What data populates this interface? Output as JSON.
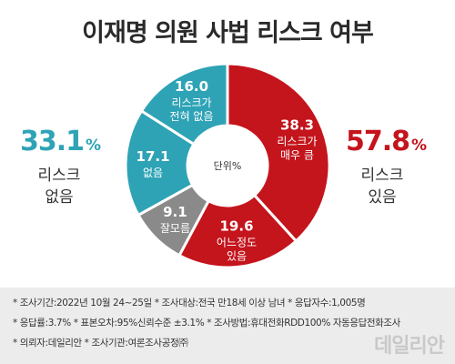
{
  "title": "이재명 의원 사법 리스크 여부",
  "summary": {
    "left": {
      "value": "33.1",
      "unit": "%",
      "label_line1": "리스크",
      "label_line2": "없음",
      "color": "#2fa3b6"
    },
    "right": {
      "value": "57.8",
      "unit": "%",
      "label_line1": "리스크",
      "label_line2": "있음",
      "color": "#c4141c"
    }
  },
  "chart_data": {
    "type": "pie",
    "title": "이재명 의원 사법 리스크 여부",
    "center_label": "단위%",
    "slices": [
      {
        "value": 38.3,
        "label": "38.3",
        "name_lines": [
          "리스크가",
          "매우 큼"
        ],
        "color": "#c4141c"
      },
      {
        "value": 19.6,
        "label": "19.6",
        "name_lines": [
          "어느정도",
          "있음"
        ],
        "color": "#c4141c"
      },
      {
        "value": 9.1,
        "label": "9.1",
        "name_lines": [
          "잘모름"
        ],
        "color": "#8a8a8a"
      },
      {
        "value": 17.1,
        "label": "17.1",
        "name_lines": [
          "없음"
        ],
        "color": "#2fa3b6"
      },
      {
        "value": 16.0,
        "label": "16.0",
        "name_lines": [
          "리스크가",
          "전혀 없음"
        ],
        "color": "#2fa3b6"
      }
    ]
  },
  "notes": [
    "* 조사기간:2022년 10월 24~25일  * 조사대상:전국 만18세 이상 남녀  * 응답자수:1,005명",
    "* 응답률:3.7%  * 표본오차:95%신뢰수준 ±3.1%  * 조사방법:휴대전화RDD100% 자동응답전화조사",
    "* 의뢰자:데일리안  * 조사기관:여론조사공정㈜"
  ],
  "watermark": "데일리안"
}
